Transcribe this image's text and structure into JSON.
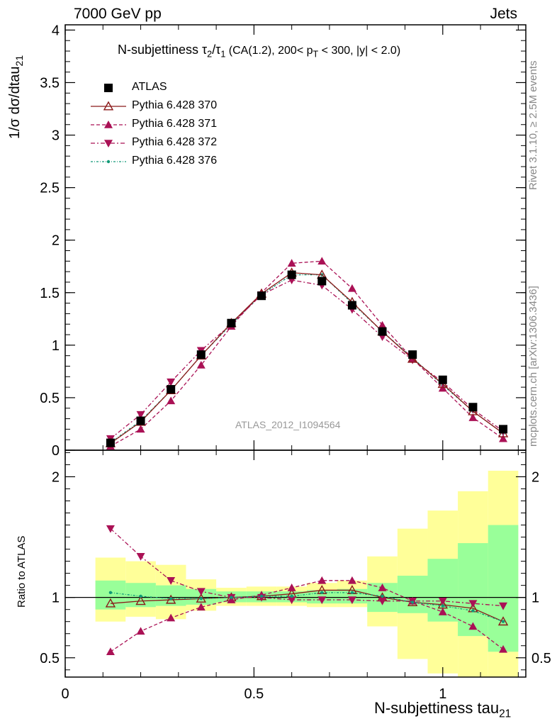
{
  "header": {
    "left": "7000 GeV pp",
    "right": "Jets",
    "side_top": "Rivet 3.1.10, ≥ 2.5M events",
    "side_bottom": "mcplots.cern.ch [arXiv:1306.3436]"
  },
  "plot_title": {
    "main": "N-subjettiness τ",
    "sub_a": "2",
    "slash": "/τ",
    "sub_b": "1",
    "cut_a": " (CA(1.2), 200< p",
    "cut_sub": "T",
    "cut_b": " < 300, |y| < 2.0)"
  },
  "watermark": "ATLAS_2012_I1094564",
  "y_axis_label": {
    "text": "1/σ dσ/dtau",
    "sub": "21"
  },
  "ratio_axis_label": "Ratio to ATLAS",
  "x_axis_label": {
    "text": "N-subjettiness tau",
    "sub": "21"
  },
  "legend": [
    {
      "label": "ATLAS",
      "color": "#000000",
      "marker": "filled-square"
    },
    {
      "label": "Pythia 6.428 370",
      "color": "#8b1a1a",
      "marker": "open-triangle-up"
    },
    {
      "label": "Pythia 6.428 371",
      "color": "#aa1155",
      "marker": "filled-triangle-up"
    },
    {
      "label": "Pythia 6.428 372",
      "color": "#aa1155",
      "marker": "filled-triangle-down"
    },
    {
      "label": "Pythia 6.428 376",
      "color": "#119977",
      "marker": "dot"
    }
  ],
  "chart_data": {
    "type": "line",
    "x": [
      0.12,
      0.2,
      0.28,
      0.36,
      0.44,
      0.52,
      0.6,
      0.68,
      0.76,
      0.84,
      0.92,
      1.0,
      1.08,
      1.16
    ],
    "xlim": [
      0,
      1.22
    ],
    "x_ticks": [
      "0",
      "0.5",
      "1"
    ],
    "main_panel": {
      "ylim": [
        0,
        4.05
      ],
      "y_ticks": [
        "0",
        "0.5",
        "1",
        "1.5",
        "2",
        "2.5",
        "3",
        "3.5",
        "4"
      ],
      "series": [
        {
          "name": "ATLAS",
          "values": [
            0.07,
            0.28,
            0.58,
            0.91,
            1.21,
            1.47,
            1.67,
            1.61,
            1.38,
            1.13,
            0.91,
            0.67,
            0.41,
            0.2
          ]
        },
        {
          "name": "Pythia 6.428 370",
          "values": [
            0.066,
            0.27,
            0.57,
            0.9,
            1.21,
            1.49,
            1.69,
            1.67,
            1.41,
            1.13,
            0.87,
            0.63,
            0.37,
            0.16
          ]
        },
        {
          "name": "Pythia 6.428 371",
          "values": [
            0.038,
            0.2,
            0.47,
            0.81,
            1.18,
            1.5,
            1.78,
            1.8,
            1.54,
            1.19,
            0.87,
            0.59,
            0.31,
            0.11
          ]
        },
        {
          "name": "Pythia 6.428 372",
          "values": [
            0.11,
            0.34,
            0.65,
            0.95,
            1.2,
            1.48,
            1.62,
            1.57,
            1.34,
            1.08,
            0.86,
            0.65,
            0.39,
            0.18
          ]
        },
        {
          "name": "Pythia 6.428 376",
          "values": [
            0.072,
            0.28,
            0.57,
            0.9,
            1.2,
            1.48,
            1.67,
            1.67,
            1.4,
            1.13,
            0.88,
            0.62,
            0.37,
            0.16
          ]
        }
      ]
    },
    "ratio_panel": {
      "ylim": [
        0.34,
        2.22
      ],
      "y_ticks": [
        "0.5",
        "1",
        "2"
      ],
      "reference": 1,
      "bin_edges": [
        0.08,
        0.16,
        0.24,
        0.32,
        0.4,
        0.48,
        0.56,
        0.64,
        0.72,
        0.8,
        0.88,
        0.96,
        1.04,
        1.12,
        1.2
      ],
      "band_inner": [
        [
          0.9,
          1.14
        ],
        [
          0.92,
          1.12
        ],
        [
          0.93,
          1.1
        ],
        [
          0.94,
          1.07
        ],
        [
          0.96,
          1.05
        ],
        [
          0.96,
          1.05
        ],
        [
          0.96,
          1.05
        ],
        [
          0.95,
          1.06
        ],
        [
          0.95,
          1.07
        ],
        [
          0.88,
          1.12
        ],
        [
          0.87,
          1.18
        ],
        [
          0.8,
          1.32
        ],
        [
          0.68,
          1.45
        ],
        [
          0.55,
          1.6
        ]
      ],
      "band_outer": [
        [
          0.8,
          1.33
        ],
        [
          0.84,
          1.3
        ],
        [
          0.82,
          1.27
        ],
        [
          0.89,
          1.15
        ],
        [
          0.93,
          1.08
        ],
        [
          0.93,
          1.09
        ],
        [
          0.93,
          1.09
        ],
        [
          0.92,
          1.12
        ],
        [
          0.92,
          1.14
        ],
        [
          0.76,
          1.34
        ],
        [
          0.49,
          1.57
        ],
        [
          0.37,
          1.72
        ],
        [
          0.34,
          1.88
        ],
        [
          0.34,
          2.05
        ]
      ],
      "series": [
        {
          "name": "Pythia 6.428 370",
          "values": [
            0.95,
            0.97,
            0.98,
            0.99,
            1.0,
            1.01,
            1.03,
            1.06,
            1.06,
            1.0,
            0.96,
            0.94,
            0.91,
            0.8
          ]
        },
        {
          "name": "Pythia 6.428 371",
          "values": [
            0.55,
            0.72,
            0.83,
            0.92,
            0.98,
            1.02,
            1.08,
            1.14,
            1.14,
            1.08,
            0.97,
            0.88,
            0.76,
            0.57
          ]
        },
        {
          "name": "Pythia 6.428 372",
          "values": [
            1.57,
            1.34,
            1.14,
            1.05,
            1.0,
            1.0,
            0.98,
            0.98,
            0.98,
            0.97,
            0.97,
            0.97,
            0.95,
            0.93
          ]
        },
        {
          "name": "Pythia 6.428 376",
          "values": [
            1.04,
            1.01,
            0.99,
            0.99,
            1.0,
            1.01,
            1.01,
            1.04,
            1.04,
            1.01,
            0.96,
            0.93,
            0.89,
            0.8
          ]
        }
      ]
    }
  }
}
